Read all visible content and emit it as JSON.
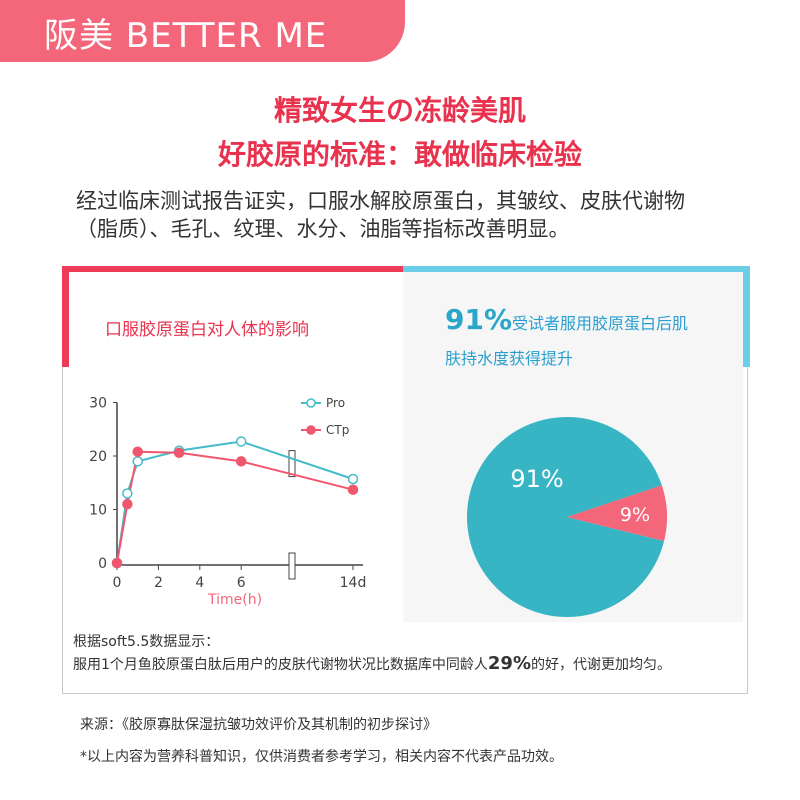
{
  "brand": {
    "text": "阪美 BETTER ME"
  },
  "headline": {
    "line1": "精致女生の冻龄美肌",
    "line2": "好胶原的标准：敢做临床检验"
  },
  "intro": {
    "line1": "经过临床测试报告证实，口服水解胶原蛋白，其皱纹、皮肤代谢物",
    "line2": "（脂质）、毛孔、纹理、水分、油脂等指标改善明显。"
  },
  "left_panel": {
    "title": "口服胶原蛋白对人体的影响"
  },
  "right_panel": {
    "stat_value": "91%",
    "stat_text_line1": "受试者服用胶原蛋白后肌",
    "stat_text_line2": "肤持水度获得提升"
  },
  "colors": {
    "pro": "#45bcc9",
    "ctp": "#f0566e",
    "pie_main": "#38b5c4",
    "pie_minor": "#f4677a"
  },
  "chart_data": [
    {
      "type": "line",
      "xlabel": "Time(h)",
      "x_ticks": [
        "0",
        "2",
        "4",
        "6",
        "14d"
      ],
      "y_ticks": [
        "0",
        "10",
        "20",
        "30"
      ],
      "ylim": [
        0,
        30
      ],
      "legend": "top-right",
      "series": [
        {
          "name": "Pro",
          "marker": "open-circle",
          "x": [
            0,
            0.5,
            1,
            3,
            6,
            14
          ],
          "y": [
            0,
            13,
            19,
            21,
            22.7,
            15.7
          ]
        },
        {
          "name": "CTp",
          "marker": "filled-circle",
          "x": [
            0,
            0.5,
            1,
            3,
            6,
            14
          ],
          "y": [
            0,
            11,
            20.8,
            20.6,
            19,
            13.7
          ]
        }
      ]
    },
    {
      "type": "pie",
      "labels": [
        "91%",
        "9%"
      ],
      "values": [
        91,
        9
      ]
    }
  ],
  "notes": {
    "line1": "根据soft5.5数据显示：",
    "line2_pre": "服用1个月鱼胶原蛋白肽后用户的皮肤代谢物状况比数据库中同龄人",
    "line2_pct": "29%",
    "line2_post": "的好，代谢更加均匀。"
  },
  "footer": {
    "source": "来源：《胶原寡肽保湿抗皱功效评价及其机制的初步探讨》",
    "disclaimer": "*以上内容为营养科普知识，仅供消费者参考学习，相关内容不代表产品功效。"
  }
}
